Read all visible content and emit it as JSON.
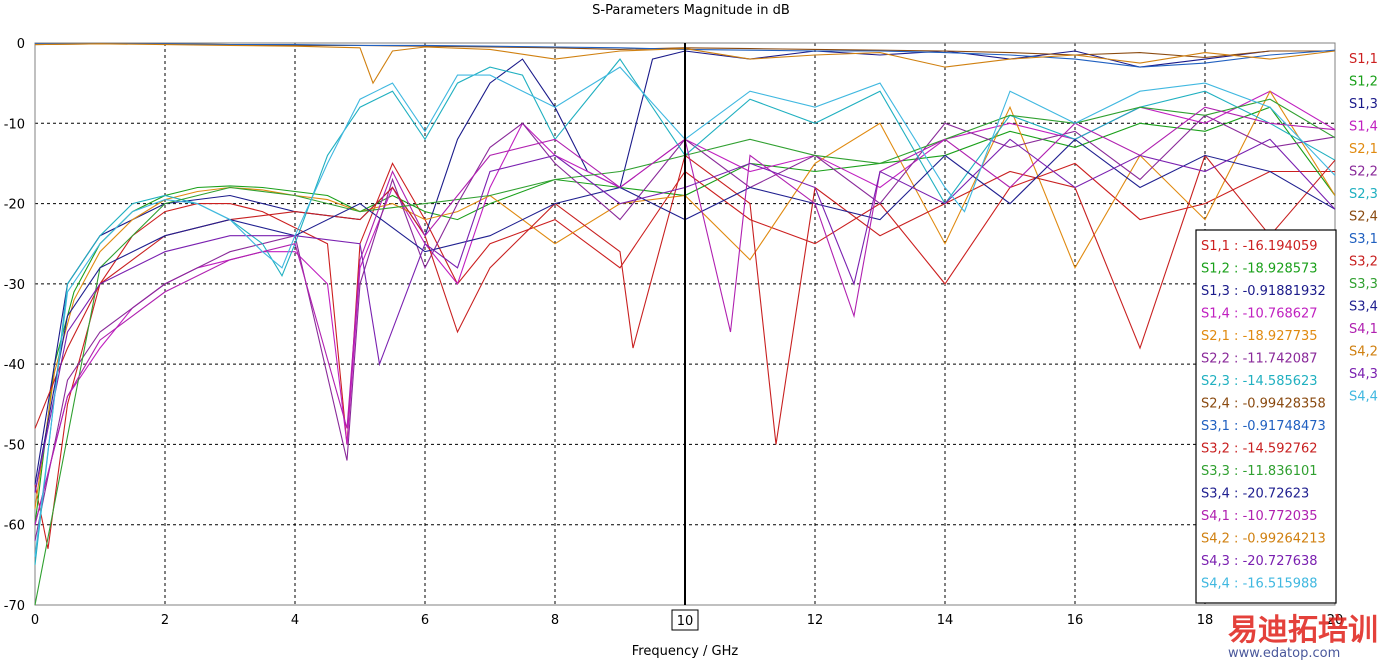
{
  "chart_data": {
    "type": "line",
    "title": "S-Parameters Magnitude in dB",
    "xlabel": "Frequency / GHz",
    "ylabel": "",
    "xlim": [
      0,
      20
    ],
    "ylim": [
      -70,
      0
    ],
    "x_ticks": [
      "0",
      "2",
      "4",
      "6",
      "8",
      "10",
      "12",
      "14",
      "16",
      "18",
      "20"
    ],
    "y_ticks": [
      "0",
      "-10",
      "-20",
      "-30",
      "-40",
      "-50",
      "-60",
      "-70"
    ],
    "grid": true,
    "legend_position": "right",
    "marker": {
      "x": 10,
      "label": "10"
    },
    "series": [
      {
        "name": "S1,1",
        "color": "#cc1f1f",
        "readout": "S1,1 : -16.194059",
        "x": [
          0,
          0.2,
          0.5,
          1,
          1.5,
          2,
          2.5,
          3,
          3.5,
          4,
          4.5,
          4.8,
          5,
          5.5,
          6,
          6.5,
          7,
          8,
          9,
          10,
          11,
          12,
          13,
          14,
          15,
          16,
          17,
          18,
          19,
          20
        ],
        "y": [
          -55,
          -63,
          -45,
          -30,
          -24,
          -21,
          -20,
          -20,
          -21,
          -23,
          -25,
          -50,
          -25,
          -15,
          -22,
          -30,
          -25,
          -22,
          -28,
          -16,
          -22,
          -25,
          -20,
          -30,
          -18,
          -15,
          -22,
          -20,
          -16,
          -16
        ]
      },
      {
        "name": "S1,2",
        "color": "#1aa01a",
        "readout": "S1,2 : -18.928573",
        "x": [
          0,
          0.3,
          0.6,
          1,
          1.5,
          2,
          2.5,
          3,
          3.5,
          4,
          4.5,
          5,
          5.5,
          6,
          6.5,
          7,
          8,
          9,
          10,
          11,
          12,
          13,
          14,
          15,
          16,
          17,
          18,
          19,
          20
        ],
        "y": [
          -60,
          -40,
          -31,
          -25,
          -21,
          -19,
          -18,
          -17.8,
          -18,
          -18.5,
          -19,
          -21,
          -19,
          -21,
          -22,
          -20,
          -17,
          -18,
          -19,
          -15,
          -16,
          -15,
          -14,
          -11,
          -13,
          -10,
          -11,
          -8,
          -19
        ]
      },
      {
        "name": "S1,3",
        "color": "#1a1a8a",
        "readout": "S1,3 : -0.91881932",
        "x": [
          0,
          0.5,
          1,
          2,
          3,
          4,
          5,
          5.5,
          6,
          6.5,
          7,
          7.5,
          8,
          8.5,
          9,
          9.5,
          10,
          11,
          12,
          13,
          14,
          15,
          16,
          17,
          18,
          19,
          20
        ],
        "y": [
          -55,
          -30,
          -24,
          -20,
          -19,
          -21,
          -22,
          -18,
          -24,
          -12,
          -5,
          -2,
          -8,
          -16,
          -18,
          -2,
          -1,
          -2,
          -1,
          -1.5,
          -1,
          -2,
          -1,
          -3,
          -2,
          -1,
          -1
        ]
      },
      {
        "name": "S1,4",
        "color": "#c020c0",
        "readout": "S1,4 : -10.768627",
        "x": [
          0,
          0.5,
          1,
          1.5,
          2,
          2.5,
          3,
          3.5,
          4,
          4.5,
          4.8,
          5,
          5.5,
          6,
          6.5,
          7,
          7.5,
          8,
          9,
          10,
          11,
          12,
          13,
          14,
          15,
          16,
          17,
          18,
          19,
          20
        ],
        "y": [
          -60,
          -44,
          -38,
          -33,
          -30,
          -28,
          -27,
          -26,
          -26,
          -30,
          -50,
          -28,
          -18,
          -25,
          -30,
          -18,
          -10,
          -14,
          -18,
          -12,
          -16,
          -14,
          -18,
          -12,
          -10,
          -12,
          -8,
          -10,
          -6,
          -10.8
        ]
      },
      {
        "name": "S2,1",
        "color": "#e08a10",
        "readout": "S2,1 : -18.927735",
        "x": [
          0,
          0.3,
          0.6,
          1,
          1.5,
          2,
          2.5,
          3,
          3.5,
          4,
          4.5,
          5,
          5.5,
          6,
          6.5,
          7,
          8,
          9,
          10,
          11,
          12,
          13,
          14,
          15,
          16,
          17,
          18,
          19,
          20
        ],
        "y": [
          -58,
          -41,
          -32,
          -26,
          -22,
          -19.5,
          -18.5,
          -18,
          -18.3,
          -19,
          -19.5,
          -21,
          -20,
          -22,
          -21,
          -19,
          -25,
          -20,
          -19,
          -27,
          -15,
          -10,
          -25,
          -8,
          -28,
          -14,
          -22,
          -6,
          -19
        ]
      },
      {
        "name": "S2,2",
        "color": "#8a2a9a",
        "readout": "S2,2 : -11.742087",
        "x": [
          0,
          0.5,
          1,
          2,
          3,
          4,
          4.8,
          5,
          5.5,
          6,
          6.5,
          7,
          7.5,
          8,
          9,
          10,
          11,
          12,
          13,
          14,
          15,
          16,
          17,
          18,
          19,
          20
        ],
        "y": [
          -62,
          -42,
          -36,
          -30,
          -26,
          -24,
          -52,
          -30,
          -17,
          -28,
          -20,
          -13,
          -10,
          -15,
          -22,
          -12,
          -18,
          -14,
          -20,
          -10,
          -13,
          -11,
          -17,
          -9,
          -13,
          -11.7
        ]
      },
      {
        "name": "S2,3",
        "color": "#20b0c0",
        "readout": "S2,3 : -14.585623",
        "x": [
          0,
          0.5,
          1,
          1.5,
          2,
          2.5,
          3,
          3.5,
          3.8,
          4,
          4.5,
          5,
          5.5,
          6,
          6.5,
          7,
          7.5,
          8,
          9,
          10,
          11,
          12,
          13,
          14,
          15,
          16,
          17,
          18,
          19,
          20
        ],
        "y": [
          -65,
          -30,
          -24,
          -20,
          -19,
          -20,
          -22,
          -25,
          -29,
          -25,
          -14,
          -8,
          -6,
          -12,
          -5,
          -3,
          -4,
          -12,
          -2,
          -14,
          -7,
          -10,
          -6,
          -20,
          -9,
          -12,
          -8,
          -6,
          -10,
          -14.6
        ]
      },
      {
        "name": "S2,4",
        "color": "#8a4a10",
        "readout": "S2,4 : -0.99428358",
        "x": [
          0,
          1,
          2,
          3,
          4,
          5,
          6,
          7,
          8,
          9,
          10,
          11,
          12,
          13,
          14,
          15,
          16,
          17,
          18,
          19,
          20
        ],
        "y": [
          -0.2,
          -0.1,
          -0.1,
          -0.2,
          -0.3,
          -0.3,
          -0.4,
          -0.5,
          -0.6,
          -0.8,
          -0.6,
          -0.7,
          -0.8,
          -0.9,
          -1,
          -1.2,
          -1.5,
          -1.2,
          -1.8,
          -1,
          -1
        ]
      },
      {
        "name": "S3,1",
        "color": "#2060c0",
        "readout": "S3,1 : -0.91748473",
        "x": [
          0,
          1,
          2,
          3,
          4,
          5,
          6,
          7,
          8,
          9,
          10,
          11,
          12,
          13,
          14,
          15,
          16,
          17,
          18,
          19,
          20
        ],
        "y": [
          -0.1,
          -0.1,
          -0.1,
          -0.2,
          -0.2,
          -0.3,
          -0.3,
          -0.4,
          -0.5,
          -0.6,
          -0.8,
          -0.9,
          -1,
          -1,
          -1.2,
          -1.5,
          -2,
          -3,
          -2.5,
          -1.5,
          -0.9
        ]
      },
      {
        "name": "S3,2",
        "color": "#c82020",
        "readout": "S3,2 : -14.592762",
        "x": [
          0,
          0.5,
          1,
          2,
          3,
          4,
          5,
          5.5,
          6,
          6.5,
          7,
          8,
          9,
          9.2,
          10,
          11,
          11.4,
          12,
          13,
          14,
          15,
          16,
          17,
          18,
          19,
          20
        ],
        "y": [
          -48,
          -38,
          -30,
          -24,
          -22,
          -21,
          -22,
          -18,
          -24,
          -36,
          -28,
          -20,
          -26,
          -38,
          -14,
          -20,
          -50,
          -18,
          -24,
          -20,
          -16,
          -18,
          -38,
          -14,
          -24,
          -14.6
        ]
      },
      {
        "name": "S3,3",
        "color": "#30a030",
        "readout": "S3,3 : -11.836101",
        "x": [
          0,
          1,
          2,
          3,
          4,
          5,
          6,
          7,
          8,
          9,
          10,
          11,
          12,
          13,
          14,
          15,
          16,
          17,
          18,
          19,
          20
        ],
        "y": [
          -70,
          -28,
          -20,
          -18,
          -19,
          -21,
          -20,
          -19,
          -17,
          -16,
          -14,
          -12,
          -14,
          -15,
          -12,
          -9,
          -10,
          -8,
          -9,
          -7,
          -11.8
        ]
      },
      {
        "name": "S3,4",
        "color": "#202090",
        "readout": "S3,4 : -20.72623",
        "x": [
          0,
          0.5,
          1,
          2,
          3,
          4,
          5,
          6,
          7,
          8,
          9,
          10,
          11,
          12,
          13,
          14,
          15,
          16,
          17,
          18,
          19,
          20
        ],
        "y": [
          -56,
          -34,
          -28,
          -24,
          -22,
          -24,
          -20,
          -26,
          -24,
          -20,
          -18,
          -22,
          -18,
          -20,
          -22,
          -14,
          -20,
          -12,
          -18,
          -14,
          -16,
          -20.7
        ]
      },
      {
        "name": "S4,1",
        "color": "#b020b0",
        "readout": "S4,1 : -10.772035",
        "x": [
          0,
          0.5,
          1,
          2,
          3,
          4,
          4.8,
          5,
          5.5,
          6,
          7,
          8,
          9,
          10,
          10.7,
          11,
          12,
          12.6,
          13,
          14,
          15,
          16,
          17,
          18,
          19,
          20
        ],
        "y": [
          -60,
          -44,
          -37,
          -31,
          -27,
          -25,
          -48,
          -27,
          -16,
          -24,
          -14,
          -12,
          -18,
          -12,
          -36,
          -14,
          -20,
          -34,
          -16,
          -12,
          -18,
          -10,
          -14,
          -8,
          -10,
          -10.8
        ]
      },
      {
        "name": "S4,2",
        "color": "#d08010",
        "readout": "S4,2 : -0.99264213",
        "x": [
          0,
          1,
          2,
          3,
          4,
          5,
          5.2,
          5.5,
          6,
          7,
          8,
          9,
          10,
          11,
          12,
          13,
          14,
          15,
          16,
          17,
          18,
          19,
          20
        ],
        "y": [
          -0.2,
          -0.1,
          -0.2,
          -0.3,
          -0.4,
          -0.6,
          -5,
          -1,
          -0.5,
          -0.8,
          -2,
          -1,
          -0.7,
          -2,
          -1.5,
          -1.2,
          -3,
          -2,
          -1.5,
          -2.5,
          -1.2,
          -2,
          -1
        ]
      },
      {
        "name": "S4,3",
        "color": "#7a20b0",
        "readout": "S4,3 : -20.727638",
        "x": [
          0,
          0.5,
          1,
          2,
          3,
          4,
          5,
          5.3,
          6,
          6.5,
          7,
          8,
          9,
          10,
          11,
          12,
          12.6,
          13,
          14,
          15,
          16,
          17,
          18,
          19,
          20
        ],
        "y": [
          -56,
          -36,
          -30,
          -26,
          -24,
          -24,
          -25,
          -40,
          -25,
          -28,
          -16,
          -14,
          -20,
          -18,
          -15,
          -18,
          -30,
          -16,
          -20,
          -12,
          -18,
          -14,
          -16,
          -12,
          -20.7
        ]
      },
      {
        "name": "S4,4",
        "color": "#40b8e0",
        "readout": "S4,4 : -16.515988",
        "x": [
          0,
          0.5,
          1,
          1.5,
          2,
          2.5,
          3,
          3.5,
          3.8,
          4,
          4.5,
          5,
          5.5,
          6,
          6.5,
          7,
          8,
          9,
          10,
          11,
          12,
          13,
          14,
          14.3,
          15,
          16,
          17,
          18,
          19,
          20
        ],
        "y": [
          -64,
          -31,
          -25,
          -21,
          -19.5,
          -20,
          -22,
          -26,
          -28,
          -24,
          -15,
          -7,
          -5,
          -11,
          -4,
          -4,
          -8,
          -3,
          -12,
          -6,
          -8,
          -5,
          -18,
          -21,
          -6,
          -10,
          -6,
          -5,
          -8,
          -16.5
        ]
      }
    ]
  },
  "watermark": {
    "mark_text": "易迪拓培训",
    "site_text": "www.edatop.com"
  }
}
